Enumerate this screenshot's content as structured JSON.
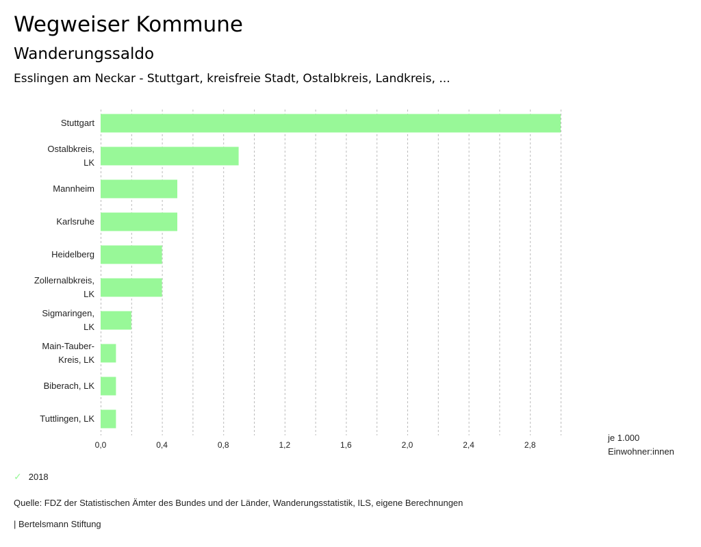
{
  "header": {
    "title": "Wegweiser Kommune",
    "subtitle": "Wanderungssaldo",
    "region": "Esslingen am Neckar - Stuttgart, kreisfreie Stadt, Ostalbkreis, Landkreis, ..."
  },
  "chart_data": {
    "type": "bar",
    "orientation": "horizontal",
    "title": "Wanderungssaldo",
    "categories": [
      [
        "Stuttgart"
      ],
      [
        "Ostalbkreis,",
        "LK"
      ],
      [
        "Mannheim"
      ],
      [
        "Karlsruhe"
      ],
      [
        "Heidelberg"
      ],
      [
        "Zollernalbkreis,",
        "LK"
      ],
      [
        "Sigmaringen,",
        "LK"
      ],
      [
        "Main-Tauber-",
        "Kreis, LK"
      ],
      [
        "Biberach, LK"
      ],
      [
        "Tuttlingen, LK"
      ]
    ],
    "series": [
      {
        "name": "2018",
        "color": "#98f898",
        "values": [
          3.0,
          0.9,
          0.5,
          0.5,
          0.4,
          0.4,
          0.2,
          0.1,
          0.1,
          0.1
        ]
      }
    ],
    "xlim": [
      0,
      3.0
    ],
    "xticks": [
      "0,0",
      "0,4",
      "0,8",
      "1,2",
      "1,6",
      "2,0",
      "2,4",
      "2,8"
    ],
    "xtick_values": [
      0,
      0.4,
      0.8,
      1.2,
      1.6,
      2.0,
      2.4,
      2.8
    ],
    "grid_step": 0.2,
    "grid": true,
    "xlabel": [
      "je 1.000",
      "Einwohner:innen"
    ],
    "legend": {
      "position": "bottom-left",
      "entries": [
        "2018"
      ]
    }
  },
  "footer": {
    "source": "Quelle: FDZ der Statistischen Ämter des Bundes und der Länder, Wanderungsstatistik, ILS, eigene Berechnungen",
    "brand": "| Bertelsmann Stiftung"
  }
}
